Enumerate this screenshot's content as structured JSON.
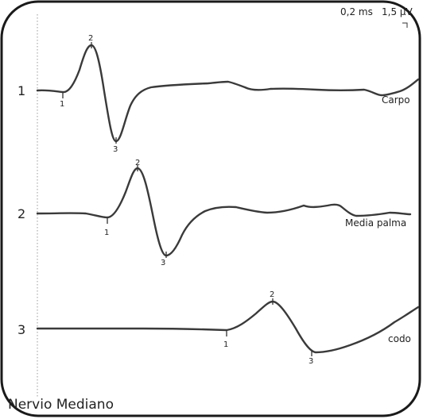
{
  "scale": {
    "time": "0,2 ms",
    "amplitude": "1,5 µV"
  },
  "title": "Nervio Mediano",
  "traces": [
    {
      "id": "1",
      "site": "Carpo",
      "markers": [
        "1",
        "2",
        "3"
      ]
    },
    {
      "id": "2",
      "site": "Media palma",
      "markers": [
        "1",
        "2",
        "3"
      ]
    },
    {
      "id": "3",
      "site": "codo",
      "markers": [
        "1",
        "2",
        "3"
      ]
    }
  ],
  "colors": {
    "trace": "#3a3a3a",
    "frame": "#1a1a1a",
    "dotted": "#9a9a9a"
  }
}
